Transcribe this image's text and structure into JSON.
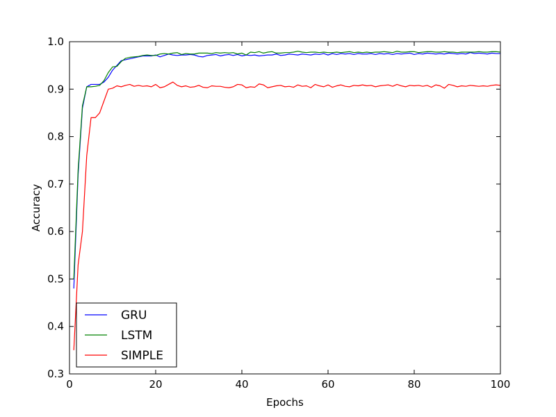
{
  "chart_data": {
    "type": "line",
    "title": "",
    "xlabel": "Epochs",
    "ylabel": "Accuracy",
    "xlim": [
      0,
      100
    ],
    "ylim": [
      0.3,
      1.0
    ],
    "xticks": [
      0,
      20,
      40,
      60,
      80,
      100
    ],
    "yticks": [
      0.3,
      0.4,
      0.5,
      0.6,
      0.7,
      0.8,
      0.9,
      1.0
    ],
    "grid": false,
    "legend_position": "lower-left",
    "x": [
      1,
      2,
      3,
      4,
      5,
      6,
      7,
      8,
      9,
      10,
      11,
      12,
      13,
      14,
      15,
      16,
      17,
      18,
      19,
      20,
      21,
      22,
      23,
      24,
      25,
      26,
      27,
      28,
      29,
      30,
      31,
      32,
      33,
      34,
      35,
      36,
      37,
      38,
      39,
      40,
      41,
      42,
      43,
      44,
      45,
      46,
      47,
      48,
      49,
      50,
      51,
      52,
      53,
      54,
      55,
      56,
      57,
      58,
      59,
      60,
      61,
      62,
      63,
      64,
      65,
      66,
      67,
      68,
      69,
      70,
      71,
      72,
      73,
      74,
      75,
      76,
      77,
      78,
      79,
      80,
      81,
      82,
      83,
      84,
      85,
      86,
      87,
      88,
      89,
      90,
      91,
      92,
      93,
      94,
      95,
      96,
      97,
      98,
      99,
      100
    ],
    "series": [
      {
        "name": "GRU",
        "color": "#0000ff",
        "values": [
          0.48,
          0.72,
          0.86,
          0.905,
          0.91,
          0.91,
          0.91,
          0.915,
          0.925,
          0.94,
          0.95,
          0.96,
          0.962,
          0.964,
          0.966,
          0.968,
          0.97,
          0.97,
          0.97,
          0.972,
          0.968,
          0.971,
          0.974,
          0.972,
          0.971,
          0.972,
          0.972,
          0.973,
          0.972,
          0.969,
          0.968,
          0.971,
          0.972,
          0.973,
          0.97,
          0.972,
          0.973,
          0.971,
          0.973,
          0.97,
          0.972,
          0.971,
          0.972,
          0.97,
          0.971,
          0.972,
          0.972,
          0.974,
          0.971,
          0.972,
          0.974,
          0.973,
          0.972,
          0.974,
          0.973,
          0.972,
          0.974,
          0.973,
          0.975,
          0.972,
          0.975,
          0.973,
          0.975,
          0.974,
          0.975,
          0.973,
          0.975,
          0.974,
          0.974,
          0.975,
          0.973,
          0.975,
          0.974,
          0.975,
          0.973,
          0.975,
          0.974,
          0.975,
          0.976,
          0.973,
          0.975,
          0.974,
          0.976,
          0.975,
          0.974,
          0.975,
          0.974,
          0.976,
          0.975,
          0.974,
          0.975,
          0.974,
          0.977,
          0.975,
          0.976,
          0.975,
          0.974,
          0.976,
          0.975,
          0.975
        ]
      },
      {
        "name": "LSTM",
        "color": "#008000",
        "values": [
          0.5,
          0.73,
          0.865,
          0.905,
          0.905,
          0.906,
          0.908,
          0.918,
          0.935,
          0.947,
          0.948,
          0.958,
          0.965,
          0.967,
          0.968,
          0.969,
          0.971,
          0.972,
          0.971,
          0.971,
          0.974,
          0.975,
          0.974,
          0.976,
          0.977,
          0.973,
          0.975,
          0.974,
          0.974,
          0.976,
          0.976,
          0.976,
          0.975,
          0.977,
          0.976,
          0.977,
          0.976,
          0.977,
          0.974,
          0.976,
          0.972,
          0.978,
          0.977,
          0.979,
          0.976,
          0.978,
          0.979,
          0.976,
          0.976,
          0.977,
          0.977,
          0.978,
          0.98,
          0.978,
          0.977,
          0.978,
          0.978,
          0.977,
          0.978,
          0.977,
          0.977,
          0.978,
          0.977,
          0.978,
          0.979,
          0.977,
          0.978,
          0.977,
          0.978,
          0.977,
          0.978,
          0.978,
          0.979,
          0.978,
          0.977,
          0.98,
          0.978,
          0.978,
          0.979,
          0.979,
          0.977,
          0.978,
          0.979,
          0.979,
          0.978,
          0.978,
          0.979,
          0.978,
          0.978,
          0.977,
          0.978,
          0.978,
          0.978,
          0.978,
          0.979,
          0.978,
          0.978,
          0.979,
          0.979,
          0.978
        ]
      },
      {
        "name": "SIMPLE",
        "color": "#ff0000",
        "values": [
          0.35,
          0.53,
          0.6,
          0.76,
          0.84,
          0.84,
          0.85,
          0.875,
          0.9,
          0.902,
          0.907,
          0.905,
          0.908,
          0.91,
          0.906,
          0.908,
          0.906,
          0.907,
          0.905,
          0.91,
          0.903,
          0.905,
          0.91,
          0.915,
          0.908,
          0.905,
          0.907,
          0.904,
          0.905,
          0.908,
          0.904,
          0.903,
          0.907,
          0.906,
          0.906,
          0.904,
          0.903,
          0.905,
          0.91,
          0.909,
          0.903,
          0.905,
          0.904,
          0.911,
          0.909,
          0.903,
          0.905,
          0.907,
          0.908,
          0.905,
          0.906,
          0.904,
          0.909,
          0.906,
          0.907,
          0.903,
          0.91,
          0.907,
          0.905,
          0.909,
          0.904,
          0.907,
          0.909,
          0.906,
          0.905,
          0.908,
          0.907,
          0.909,
          0.907,
          0.908,
          0.905,
          0.907,
          0.908,
          0.909,
          0.906,
          0.91,
          0.907,
          0.905,
          0.908,
          0.907,
          0.908,
          0.906,
          0.908,
          0.904,
          0.909,
          0.907,
          0.902,
          0.91,
          0.908,
          0.905,
          0.907,
          0.906,
          0.908,
          0.907,
          0.906,
          0.907,
          0.906,
          0.908,
          0.909,
          0.908
        ]
      }
    ]
  }
}
